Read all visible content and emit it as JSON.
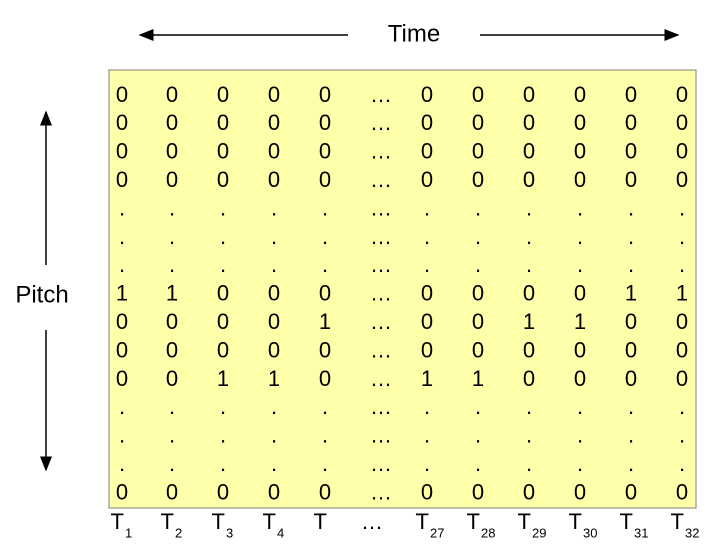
{
  "axes": {
    "time_label": "Time",
    "pitch_label": "Pitch"
  },
  "matrix": {
    "rows": [
      [
        "0",
        "0",
        "0",
        "0",
        "0",
        "…",
        "0",
        "0",
        "0",
        "0",
        "0",
        "0"
      ],
      [
        "0",
        "0",
        "0",
        "0",
        "0",
        "…",
        "0",
        "0",
        "0",
        "0",
        "0",
        "0"
      ],
      [
        "0",
        "0",
        "0",
        "0",
        "0",
        "…",
        "0",
        "0",
        "0",
        "0",
        "0",
        "0"
      ],
      [
        "0",
        "0",
        "0",
        "0",
        "0",
        "…",
        "0",
        "0",
        "0",
        "0",
        "0",
        "0"
      ],
      [
        ".",
        ".",
        ".",
        ".",
        ".",
        "…",
        ".",
        ".",
        ".",
        ".",
        ".",
        "."
      ],
      [
        ".",
        ".",
        ".",
        ".",
        ".",
        "…",
        ".",
        ".",
        ".",
        ".",
        ".",
        "."
      ],
      [
        ".",
        ".",
        ".",
        ".",
        ".",
        "…",
        ".",
        ".",
        ".",
        ".",
        ".",
        "."
      ],
      [
        "1",
        "1",
        "0",
        "0",
        "0",
        "…",
        "0",
        "0",
        "0",
        "0",
        "1",
        "1"
      ],
      [
        "0",
        "0",
        "0",
        "0",
        "1",
        "…",
        "0",
        "0",
        "1",
        "1",
        "0",
        "0"
      ],
      [
        "0",
        "0",
        "0",
        "0",
        "0",
        "…",
        "0",
        "0",
        "0",
        "0",
        "0",
        "0"
      ],
      [
        "0",
        "0",
        "1",
        "1",
        "0",
        "…",
        "1",
        "1",
        "0",
        "0",
        "0",
        "0"
      ],
      [
        ".",
        ".",
        ".",
        ".",
        ".",
        "…",
        ".",
        ".",
        ".",
        ".",
        ".",
        "."
      ],
      [
        ".",
        ".",
        ".",
        ".",
        ".",
        "…",
        ".",
        ".",
        ".",
        ".",
        ".",
        "."
      ],
      [
        ".",
        ".",
        ".",
        ".",
        ".",
        "…",
        ".",
        ".",
        ".",
        ".",
        ".",
        "."
      ],
      [
        "0",
        "0",
        "0",
        "0",
        "0",
        "…",
        "0",
        "0",
        "0",
        "0",
        "0",
        "0"
      ]
    ],
    "column_labels": [
      {
        "base": "T",
        "sub": "1"
      },
      {
        "base": "T",
        "sub": "2"
      },
      {
        "base": "T",
        "sub": "3"
      },
      {
        "base": "T",
        "sub": "4"
      },
      {
        "base": "T"
      },
      {
        "base": "…"
      },
      {
        "base": "T",
        "sub": "27"
      },
      {
        "base": "T",
        "sub": "28"
      },
      {
        "base": "T",
        "sub": "29"
      },
      {
        "base": "T",
        "sub": "30"
      },
      {
        "base": "T",
        "sub": "31"
      },
      {
        "base": "T",
        "sub": "32"
      }
    ]
  }
}
